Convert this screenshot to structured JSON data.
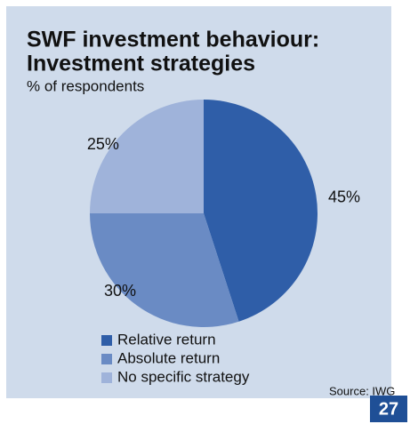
{
  "chart_data": {
    "type": "pie",
    "title": [
      "SWF investment behaviour:",
      "Investment strategies"
    ],
    "subtitle": "% of respondents",
    "categories": [
      "Relative return",
      "Absolute return",
      "No specific strategy"
    ],
    "values": [
      45,
      30,
      25
    ],
    "value_labels": [
      "45%",
      "30%",
      "25%"
    ],
    "colors": [
      "#2f5ea8",
      "#6a8bc4",
      "#9fb3da"
    ],
    "legend": "bottom",
    "source": "Source: IWG"
  },
  "page_number": "27"
}
